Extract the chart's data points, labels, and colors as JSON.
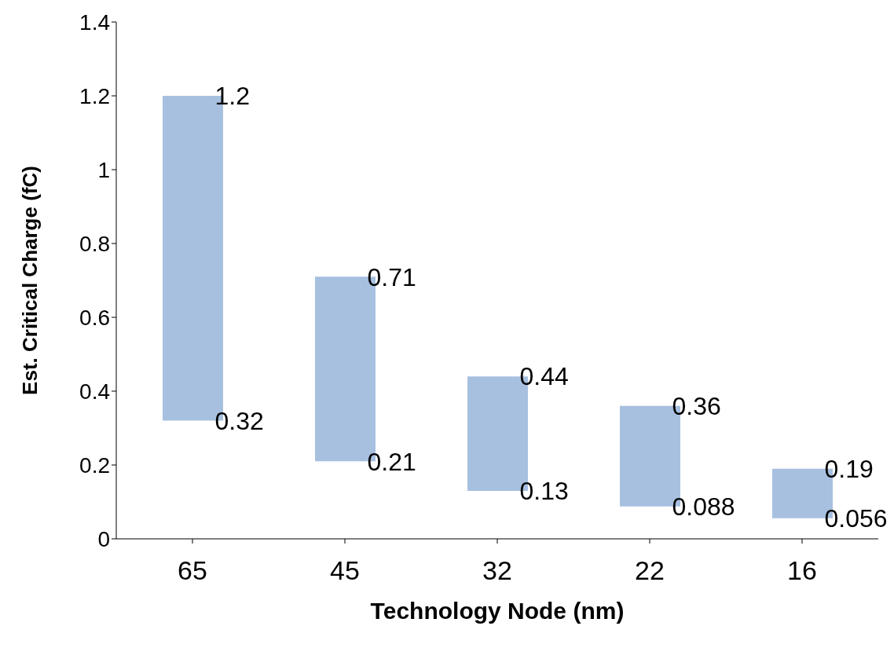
{
  "chart_data": {
    "type": "bar",
    "xlabel": "Technology Node (nm)",
    "ylabel": "Est. Critical Charge (fC)",
    "categories": [
      "65",
      "45",
      "32",
      "22",
      "16"
    ],
    "base": [
      0.32,
      0.21,
      0.13,
      0.088,
      0.056
    ],
    "values": [
      0.88,
      0.5,
      0.31,
      0.272,
      0.134
    ],
    "color": "#a7c0e0",
    "ylim": [
      0,
      1.4
    ],
    "yticks": [
      0,
      0.2,
      0.4,
      0.6,
      0.8,
      1,
      1.2,
      1.4
    ],
    "grid": false,
    "legend": false,
    "annotations": [
      {
        "text": "1.2",
        "x": "65",
        "y": 1.2
      },
      {
        "text": "0.32",
        "x": "65",
        "y": 0.32
      },
      {
        "text": "0.71",
        "x": "45",
        "y": 0.71
      },
      {
        "text": "0.21",
        "x": "45",
        "y": 0.21
      },
      {
        "text": "0.44",
        "x": "32",
        "y": 0.44
      },
      {
        "text": "0.13",
        "x": "32",
        "y": 0.13
      },
      {
        "text": "0.36",
        "x": "22",
        "y": 0.36
      },
      {
        "text": "0.088",
        "x": "22",
        "y": 0.088
      },
      {
        "text": "0.19",
        "x": "16",
        "y": 0.19
      },
      {
        "text": "0.056",
        "x": "16",
        "y": 0.056
      }
    ]
  }
}
